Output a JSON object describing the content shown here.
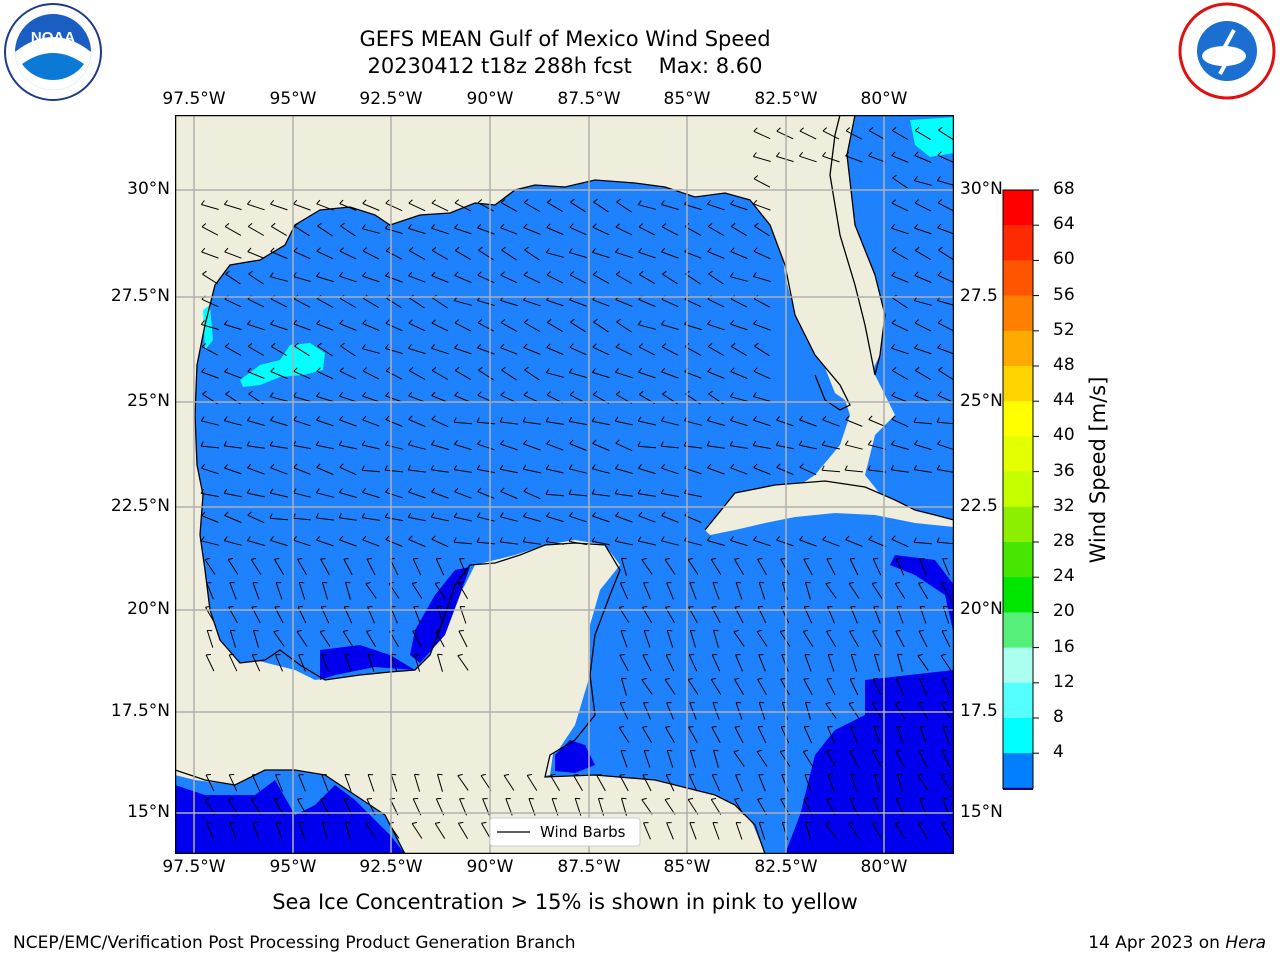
{
  "title": {
    "line1": "GEFS MEAN Gulf of Mexico Wind Speed",
    "line2": "20230412 t18z 288h fcst",
    "max": "Max: 8.60"
  },
  "logos": {
    "left": "NOAA",
    "right": "National Weather Service"
  },
  "axes": {
    "lon_ticks": [
      "97.5°W",
      "95°W",
      "92.5°W",
      "90°W",
      "87.5°W",
      "85°W",
      "82.5°W",
      "80°W"
    ],
    "lat_ticks": [
      "30°N",
      "27.5°N",
      "25°N",
      "22.5°N",
      "20°N",
      "17.5°N",
      "15°N"
    ],
    "lat_ticks_right": [
      "30°N",
      "27.5",
      "25°N",
      "22.5",
      "20°N",
      "17.5",
      "15°N"
    ]
  },
  "legend": {
    "label": "Wind Barbs"
  },
  "colorbar": {
    "label": "Wind Speed [m/s]",
    "ticks": [
      "68",
      "64",
      "60",
      "56",
      "52",
      "48",
      "44",
      "40",
      "36",
      "32",
      "28",
      "24",
      "20",
      "16",
      "12",
      "8",
      "4"
    ],
    "colors": [
      "#ff0000",
      "#ff2a00",
      "#ff5500",
      "#ff8000",
      "#ffaa00",
      "#ffd400",
      "#ffff00",
      "#e3ff00",
      "#c6ff00",
      "#8cee00",
      "#46e600",
      "#00e600",
      "#55f07a",
      "#aaffee",
      "#55ffff",
      "#00ffff",
      "#0080ff"
    ],
    "under_color": "#0000ff"
  },
  "map_colors": {
    "land": "#efeedc",
    "ocean_4_8": "#1e82ff",
    "ocean_lt4": "#0000ee",
    "ocean_8_12": "#00ffff",
    "grid": "#b0b0b0"
  },
  "note": "Sea Ice Concentration > 15% is shown in pink to yellow",
  "footer": {
    "left": "NCEP/EMC/Verification Post Processing Product Generation Branch",
    "right_date": "14 Apr 2023 on",
    "right_machine": "Hera"
  }
}
